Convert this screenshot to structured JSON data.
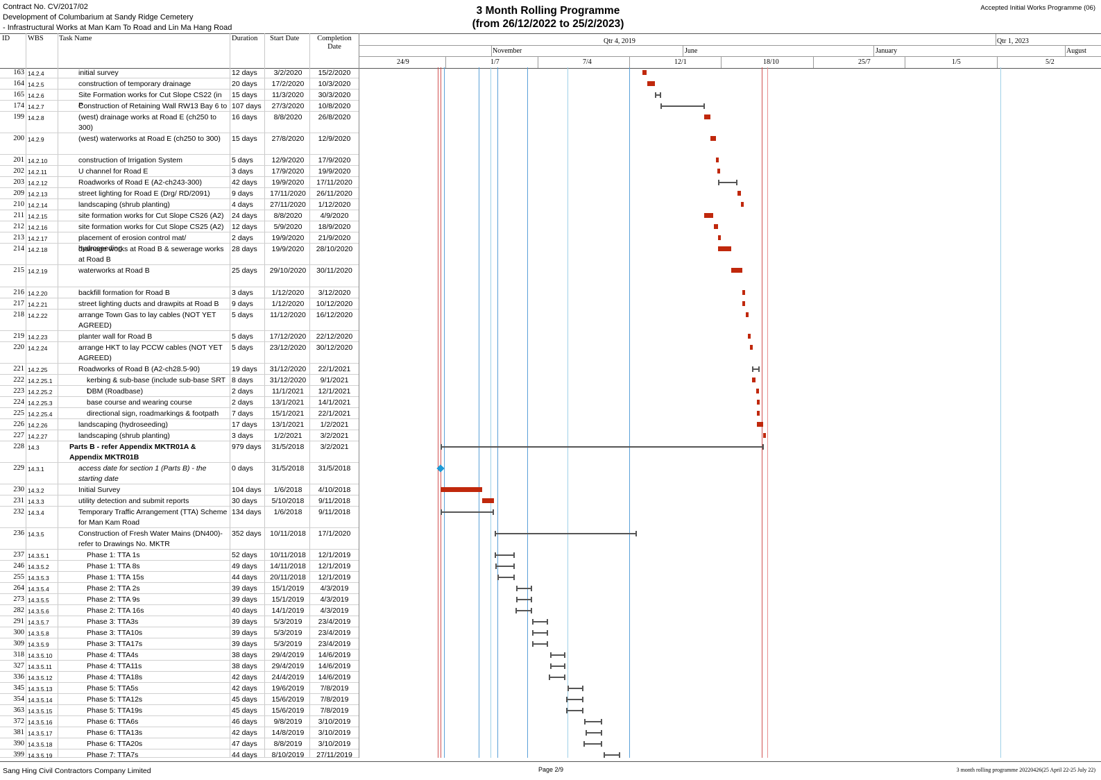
{
  "header": {
    "contract_no": "Contract No. CV/2017/02",
    "project_line1": "Development of Columbarium at Sandy Ridge Cemetery",
    "project_line2": "- Infrastructural Works at Man Kam To Road and Lin Ma Hang Road",
    "title_line1": "3 Month Rolling Programme",
    "title_line2": "(from 26/12/2022 to 25/2/2023)",
    "programme_ref": "Accepted Initial Works Programme (06)"
  },
  "columns": {
    "id": "ID",
    "wbs": "WBS",
    "task_name": "Task Name",
    "duration": "Duration",
    "start": "Start Date",
    "completion": "Completion Date"
  },
  "timescale": {
    "top": [
      "Qtr 4, 2019",
      "Qtr 1, 2023"
    ],
    "middle": [
      "November",
      "June",
      "January",
      "August"
    ],
    "bottom": [
      "24/9",
      "1/7",
      "7/4",
      "12/1",
      "18/10",
      "25/7",
      "1/5",
      "5/2"
    ]
  },
  "tasks": [
    {
      "id": "163",
      "wbs": "14.2.4",
      "name": "initial survey",
      "dur": "12 days",
      "start": "3/2/2020",
      "end": "15/2/2020"
    },
    {
      "id": "164",
      "wbs": "14.2.5",
      "name": "construction of temporary drainage",
      "dur": "20 days",
      "start": "17/2/2020",
      "end": "10/3/2020"
    },
    {
      "id": "165",
      "wbs": "14.2.6",
      "name": "Site Formation works for Cut Slope CS22 (in P",
      "dur": "15 days",
      "start": "11/3/2020",
      "end": "30/3/2020"
    },
    {
      "id": "174",
      "wbs": "14.2.7",
      "name": "Construction of Retaining Wall RW13 Bay 6 to",
      "dur": "107 days",
      "start": "27/3/2020",
      "end": "10/8/2020"
    },
    {
      "id": "199",
      "wbs": "14.2.8",
      "name": "(west) drainage works at Road E (ch250 to 300)",
      "dur": "16 days",
      "start": "8/8/2020",
      "end": "26/8/2020"
    },
    {
      "id": "200",
      "wbs": "14.2.9",
      "name": "(west) waterworks at Road E (ch250 to 300)",
      "dur": "15 days",
      "start": "27/8/2020",
      "end": "12/9/2020"
    },
    {
      "id": "201",
      "wbs": "14.2.10",
      "name": "construction of Irrigation System",
      "dur": "5 days",
      "start": "12/9/2020",
      "end": "17/9/2020"
    },
    {
      "id": "202",
      "wbs": "14.2.11",
      "name": "U channel for Road E",
      "dur": "3 days",
      "start": "17/9/2020",
      "end": "19/9/2020"
    },
    {
      "id": "203",
      "wbs": "14.2.12",
      "name": "Roadworks of Road E (A2-ch243-300)",
      "dur": "42 days",
      "start": "19/9/2020",
      "end": "17/11/2020"
    },
    {
      "id": "209",
      "wbs": "14.2.13",
      "name": "street lighting for Road E (Drg/ RD/2091)",
      "dur": "9 days",
      "start": "17/11/2020",
      "end": "26/11/2020"
    },
    {
      "id": "210",
      "wbs": "14.2.14",
      "name": "landscaping (shrub planting)",
      "dur": "4 days",
      "start": "27/11/2020",
      "end": "1/12/2020"
    },
    {
      "id": "211",
      "wbs": "14.2.15",
      "name": "site formation works for Cut Slope CS26 (A2)",
      "dur": "24 days",
      "start": "8/8/2020",
      "end": "4/9/2020"
    },
    {
      "id": "212",
      "wbs": "14.2.16",
      "name": "site formation works for Cut Slope CS25 (A2)",
      "dur": "12 days",
      "start": "5/9/2020",
      "end": "18/9/2020"
    },
    {
      "id": "213",
      "wbs": "14.2.17",
      "name": "placement of erosion control mat/ hydroseeding",
      "dur": "2 days",
      "start": "19/9/2020",
      "end": "21/9/2020"
    },
    {
      "id": "214",
      "wbs": "14.2.18",
      "name": "drainage works at Road B & sewerage works at Road B",
      "dur": "28 days",
      "start": "19/9/2020",
      "end": "28/10/2020"
    },
    {
      "id": "215",
      "wbs": "14.2.19",
      "name": "waterworks at Road B",
      "dur": "25 days",
      "start": "29/10/2020",
      "end": "30/11/2020"
    },
    {
      "id": "216",
      "wbs": "14.2.20",
      "name": "backfill formation for Road B",
      "dur": "3 days",
      "start": "1/12/2020",
      "end": "3/12/2020"
    },
    {
      "id": "217",
      "wbs": "14.2.21",
      "name": "street lighting ducts and drawpits at Road B",
      "dur": "9 days",
      "start": "1/12/2020",
      "end": "10/12/2020"
    },
    {
      "id": "218",
      "wbs": "14.2.22",
      "name": "arrange Town Gas to lay cables (NOT YET AGREED)",
      "dur": "5 days",
      "start": "11/12/2020",
      "end": "16/12/2020"
    },
    {
      "id": "219",
      "wbs": "14.2.23",
      "name": "planter wall for Road B",
      "dur": "5 days",
      "start": "17/12/2020",
      "end": "22/12/2020"
    },
    {
      "id": "220",
      "wbs": "14.2.24",
      "name": "arrange HKT to lay PCCW cables (NOT YET AGREED)",
      "dur": "5 days",
      "start": "23/12/2020",
      "end": "30/12/2020"
    },
    {
      "id": "221",
      "wbs": "14.2.25",
      "name": "Roadworks of Road B (A2-ch28.5-90)",
      "dur": "19 days",
      "start": "31/12/2020",
      "end": "22/1/2021"
    },
    {
      "id": "222",
      "wbs": "14.2.25.1",
      "name": "kerbing & sub-base (include sub-base SRT t",
      "dur": "8 days",
      "start": "31/12/2020",
      "end": "9/1/2021"
    },
    {
      "id": "223",
      "wbs": "14.2.25.2",
      "name": "DBM (Roadbase)",
      "dur": "2 days",
      "start": "11/1/2021",
      "end": "12/1/2021"
    },
    {
      "id": "224",
      "wbs": "14.2.25.3",
      "name": "base course and wearing course",
      "dur": "2 days",
      "start": "13/1/2021",
      "end": "14/1/2021"
    },
    {
      "id": "225",
      "wbs": "14.2.25.4",
      "name": "directional sign, roadmarkings & footpath",
      "dur": "7 days",
      "start": "15/1/2021",
      "end": "22/1/2021"
    },
    {
      "id": "226",
      "wbs": "14.2.26",
      "name": "landscaping (hydroseeding)",
      "dur": "17 days",
      "start": "13/1/2021",
      "end": "1/2/2021"
    },
    {
      "id": "227",
      "wbs": "14.2.27",
      "name": "landscaping (shrub planting)",
      "dur": "3 days",
      "start": "1/2/2021",
      "end": "3/2/2021"
    },
    {
      "id": "228",
      "wbs": "14.3",
      "name": "Parts B - refer Appendix MKTR01A & Appendix MKTR01B",
      "dur": "979 days",
      "start": "31/5/2018",
      "end": "3/2/2021"
    },
    {
      "id": "229",
      "wbs": "14.3.1",
      "name": "access date for section 1 (Parts B) - the starting date",
      "dur": "0 days",
      "start": "31/5/2018",
      "end": "31/5/2018"
    },
    {
      "id": "230",
      "wbs": "14.3.2",
      "name": "Initial Survey",
      "dur": "104 days",
      "start": "1/6/2018",
      "end": "4/10/2018"
    },
    {
      "id": "231",
      "wbs": "14.3.3",
      "name": "utility detection and submit reports",
      "dur": "30 days",
      "start": "5/10/2018",
      "end": "9/11/2018"
    },
    {
      "id": "232",
      "wbs": "14.3.4",
      "name": "Temporary Traffic Arrangement (TTA) Scheme for Man Kam Road",
      "dur": "134 days",
      "start": "1/6/2018",
      "end": "9/11/2018"
    },
    {
      "id": "236",
      "wbs": "14.3.5",
      "name": "Construction of Fresh Water Mains (DN400)-refer to Drawings No. MKTR",
      "dur": "352 days",
      "start": "10/11/2018",
      "end": "17/1/2020"
    },
    {
      "id": "237",
      "wbs": "14.3.5.1",
      "name": "Phase 1: TTA 1s",
      "dur": "52 days",
      "start": "10/11/2018",
      "end": "12/1/2019"
    },
    {
      "id": "246",
      "wbs": "14.3.5.2",
      "name": "Phase 1: TTA 8s",
      "dur": "49 days",
      "start": "14/11/2018",
      "end": "12/1/2019"
    },
    {
      "id": "255",
      "wbs": "14.3.5.3",
      "name": "Phase 1: TTA 15s",
      "dur": "44 days",
      "start": "20/11/2018",
      "end": "12/1/2019"
    },
    {
      "id": "264",
      "wbs": "14.3.5.4",
      "name": "Phase 2: TTA 2s",
      "dur": "39 days",
      "start": "15/1/2019",
      "end": "4/3/2019"
    },
    {
      "id": "273",
      "wbs": "14.3.5.5",
      "name": "Phase 2: TTA 9s",
      "dur": "39 days",
      "start": "15/1/2019",
      "end": "4/3/2019"
    },
    {
      "id": "282",
      "wbs": "14.3.5.6",
      "name": "Phase 2: TTA 16s",
      "dur": "40 days",
      "start": "14/1/2019",
      "end": "4/3/2019"
    },
    {
      "id": "291",
      "wbs": "14.3.5.7",
      "name": "Phase 3: TTA3s",
      "dur": "39 days",
      "start": "5/3/2019",
      "end": "23/4/2019"
    },
    {
      "id": "300",
      "wbs": "14.3.5.8",
      "name": "Phase 3: TTA10s",
      "dur": "39 days",
      "start": "5/3/2019",
      "end": "23/4/2019"
    },
    {
      "id": "309",
      "wbs": "14.3.5.9",
      "name": "Phase 3: TTA17s",
      "dur": "39 days",
      "start": "5/3/2019",
      "end": "23/4/2019"
    },
    {
      "id": "318",
      "wbs": "14.3.5.10",
      "name": "Phase 4: TTA4s",
      "dur": "38 days",
      "start": "29/4/2019",
      "end": "14/6/2019"
    },
    {
      "id": "327",
      "wbs": "14.3.5.11",
      "name": "Phase 4: TTA11s",
      "dur": "38 days",
      "start": "29/4/2019",
      "end": "14/6/2019"
    },
    {
      "id": "336",
      "wbs": "14.3.5.12",
      "name": "Phase 4: TTA18s",
      "dur": "42 days",
      "start": "24/4/2019",
      "end": "14/6/2019"
    },
    {
      "id": "345",
      "wbs": "14.3.5.13",
      "name": "Phase 5: TTA5s",
      "dur": "42 days",
      "start": "19/6/2019",
      "end": "7/8/2019"
    },
    {
      "id": "354",
      "wbs": "14.3.5.14",
      "name": "Phase 5: TTA12s",
      "dur": "45 days",
      "start": "15/6/2019",
      "end": "7/8/2019"
    },
    {
      "id": "363",
      "wbs": "14.3.5.15",
      "name": "Phase 5: TTA19s",
      "dur": "45 days",
      "start": "15/6/2019",
      "end": "7/8/2019"
    },
    {
      "id": "372",
      "wbs": "14.3.5.16",
      "name": "Phase 6: TTA6s",
      "dur": "46 days",
      "start": "9/8/2019",
      "end": "3/10/2019"
    },
    {
      "id": "381",
      "wbs": "14.3.5.17",
      "name": "Phase 6: TTA13s",
      "dur": "42 days",
      "start": "14/8/2019",
      "end": "3/10/2019"
    },
    {
      "id": "390",
      "wbs": "14.3.5.18",
      "name": "Phase 6: TTA20s",
      "dur": "47 days",
      "start": "8/8/2019",
      "end": "3/10/2019"
    },
    {
      "id": "399",
      "wbs": "14.3.5.19",
      "name": "Phase 7: TTA7s",
      "dur": "44 days",
      "start": "8/10/2019",
      "end": "27/11/2019"
    }
  ],
  "footer": {
    "company": "Sang Hing Civil Contractors Company Limited",
    "page": "Page 2/9",
    "file": "3 month rolling programme 20220426(25 April 22-25 July 22)"
  },
  "colors": {
    "critical_bar": "#c0280c",
    "summary_bar": "#555555",
    "milestone": "#1e9ad6",
    "progress_line": "#d05050",
    "grid_line": "#5aa0d8"
  }
}
